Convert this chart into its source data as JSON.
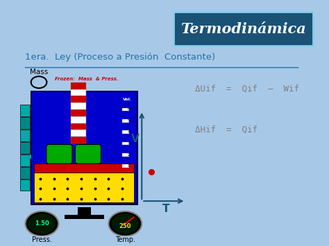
{
  "bg_outer": "#a8c8e8",
  "bg_slide": "#ffffff",
  "title_box_bg": "#1a5276",
  "title_box_text": "Termodinámica",
  "title_box_color": "#ffffff",
  "subtitle": "1era.  Ley (Proceso a Presión  Constante)",
  "subtitle_color": "#2471a3",
  "eq1": "ΔUif  =  Qif  –  Wif",
  "eq2": "ΔHif  =  Qif",
  "eq_color": "#808080",
  "frozen_label": "Frozen:  Mass  & Press.",
  "frozen_color": "#cc0000",
  "mass_label": "Mass",
  "press_label": "Press.",
  "temp_label": "Temp.",
  "press_value": "1.50",
  "temp_value": "250",
  "vol_label": "Vol.",
  "axis_v_label": "V",
  "axis_t_label": "T",
  "dot_color": "#cc0000",
  "axis_color": "#1a5276"
}
